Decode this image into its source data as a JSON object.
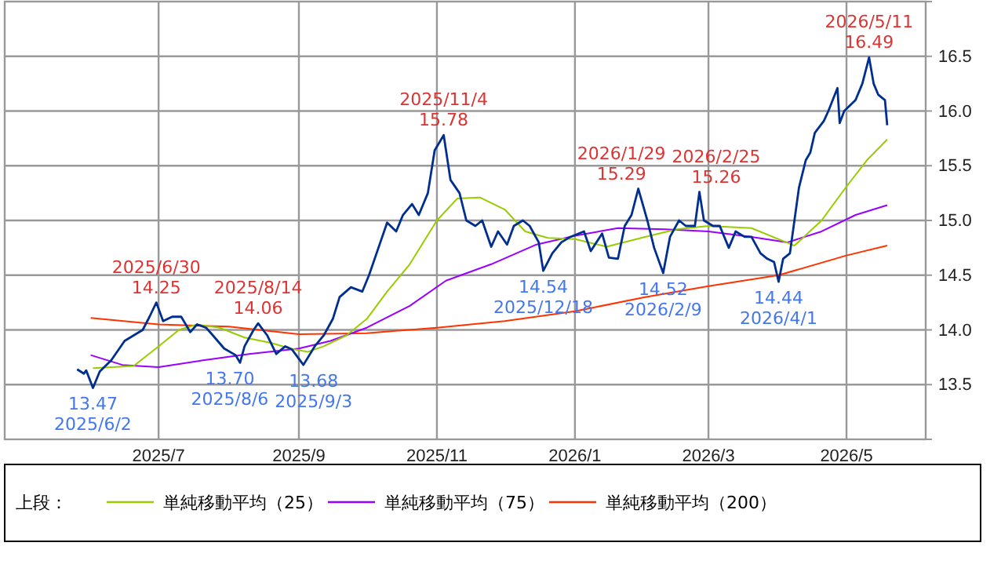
{
  "chart_data": {
    "type": "line",
    "xlim": [
      "2025-04-24",
      "2026-06-05"
    ],
    "ylim": [
      13,
      17
    ],
    "xticks": [
      {
        "value": "2025-07-01",
        "label": "2025/7"
      },
      {
        "value": "2025-09-01",
        "label": "2025/9"
      },
      {
        "value": "2025-11-01",
        "label": "2025/11"
      },
      {
        "value": "2026-01-01",
        "label": "2026/1"
      },
      {
        "value": "2026-03-01",
        "label": "2026/3"
      },
      {
        "value": "2026-05-01",
        "label": "2026/5"
      }
    ],
    "yticks": [
      {
        "value": 13.5,
        "label": "13.5"
      },
      {
        "value": 14,
        "label": "14.0"
      },
      {
        "value": 14.5,
        "label": "14.5"
      },
      {
        "value": 15,
        "label": "15.0"
      },
      {
        "value": 15.5,
        "label": "15.5"
      },
      {
        "value": 16,
        "label": "16.0"
      },
      {
        "value": 16.5,
        "label": "16.5"
      }
    ],
    "grid": true,
    "legend": "bottom",
    "legend_title": "上段：",
    "series": [
      {
        "color": "#002f8f",
        "x": [
          "2025-05-26",
          "2025-05-29",
          "2025-05-30",
          "2025-06-02",
          "2025-06-05",
          "2025-06-10",
          "2025-06-16",
          "2025-06-20",
          "2025-06-24",
          "2025-06-27",
          "2025-06-30",
          "2025-07-03",
          "2025-07-07",
          "2025-07-11",
          "2025-07-15",
          "2025-07-18",
          "2025-07-22",
          "2025-07-25",
          "2025-07-30",
          "2025-08-04",
          "2025-08-06",
          "2025-08-08",
          "2025-08-12",
          "2025-08-14",
          "2025-08-18",
          "2025-08-22",
          "2025-08-26",
          "2025-08-29",
          "2025-09-03",
          "2025-09-08",
          "2025-09-12",
          "2025-09-16",
          "2025-09-19",
          "2025-09-24",
          "2025-09-29",
          "2025-10-02",
          "2025-10-07",
          "2025-10-10",
          "2025-10-14",
          "2025-10-17",
          "2025-10-21",
          "2025-10-24",
          "2025-10-28",
          "2025-10-31",
          "2025-11-04",
          "2025-11-07",
          "2025-11-11",
          "2025-11-14",
          "2025-11-18",
          "2025-11-21",
          "2025-11-25",
          "2025-11-28",
          "2025-12-02",
          "2025-12-05",
          "2025-12-09",
          "2025-12-12",
          "2025-12-16",
          "2025-12-18",
          "2025-12-22",
          "2025-12-26",
          "2025-12-30",
          "2026-01-05",
          "2026-01-08",
          "2026-01-13",
          "2026-01-16",
          "2026-01-20",
          "2026-01-23",
          "2026-01-26",
          "2026-01-29",
          "2026-02-02",
          "2026-02-05",
          "2026-02-09",
          "2026-02-12",
          "2026-02-16",
          "2026-02-19",
          "2026-02-23",
          "2026-02-25",
          "2026-02-27",
          "2026-03-03",
          "2026-03-06",
          "2026-03-10",
          "2026-03-13",
          "2026-03-17",
          "2026-03-20",
          "2026-03-24",
          "2026-03-27",
          "2026-03-30",
          "2026-04-01",
          "2026-04-03",
          "2026-04-06",
          "2026-04-08",
          "2026-04-10",
          "2026-04-13",
          "2026-04-15",
          "2026-04-17",
          "2026-04-21",
          "2026-04-23",
          "2026-04-27",
          "2026-04-28",
          "2026-04-30",
          "2026-05-05",
          "2026-05-08",
          "2026-05-11",
          "2026-05-13",
          "2026-05-15",
          "2026-05-18",
          "2026-05-19"
        ],
        "values": [
          13.64,
          13.6,
          13.63,
          13.47,
          13.62,
          13.72,
          13.9,
          13.95,
          14.0,
          14.12,
          14.25,
          14.08,
          14.12,
          14.12,
          13.98,
          14.05,
          14.02,
          13.95,
          13.83,
          13.77,
          13.7,
          13.85,
          14.0,
          14.06,
          13.95,
          13.78,
          13.85,
          13.82,
          13.68,
          13.85,
          13.95,
          14.1,
          14.3,
          14.39,
          14.35,
          14.5,
          14.8,
          14.98,
          14.9,
          15.05,
          15.15,
          15.05,
          15.25,
          15.64,
          15.78,
          15.37,
          15.25,
          15.0,
          14.95,
          15.0,
          14.76,
          14.9,
          14.78,
          14.95,
          15.0,
          14.95,
          14.8,
          14.54,
          14.7,
          14.8,
          14.85,
          14.9,
          14.72,
          14.88,
          14.66,
          14.65,
          14.95,
          15.05,
          15.29,
          15.0,
          14.75,
          14.52,
          14.85,
          15.0,
          14.95,
          14.95,
          15.26,
          15.0,
          14.95,
          14.95,
          14.75,
          14.9,
          14.85,
          14.85,
          14.7,
          14.65,
          14.62,
          14.44,
          14.65,
          14.7,
          15.0,
          15.3,
          15.55,
          15.62,
          15.8,
          15.91,
          16.0,
          16.21,
          15.89,
          16.0,
          16.1,
          16.25,
          16.49,
          16.25,
          16.15,
          16.1,
          15.87
        ]
      },
      {
        "name": "単純移動平均（25）",
        "color": "#99cc00",
        "x": [
          "2025-06-02",
          "2025-06-20",
          "2025-07-01",
          "2025-07-10",
          "2025-07-18",
          "2025-07-28",
          "2025-08-08",
          "2025-08-20",
          "2025-08-28",
          "2025-09-05",
          "2025-09-12",
          "2025-09-22",
          "2025-10-01",
          "2025-10-10",
          "2025-10-20",
          "2025-11-01",
          "2025-11-10",
          "2025-11-20",
          "2025-12-01",
          "2025-12-10",
          "2025-12-20",
          "2026-01-01",
          "2026-01-15",
          "2026-02-01",
          "2026-02-15",
          "2026-03-01",
          "2026-03-20",
          "2026-04-08",
          "2026-04-20",
          "2026-05-01",
          "2026-05-10",
          "2026-05-19"
        ],
        "values": [
          13.65,
          13.67,
          13.85,
          14.0,
          14.05,
          14.02,
          13.93,
          13.88,
          13.83,
          13.8,
          13.85,
          13.95,
          14.1,
          14.35,
          14.6,
          15.0,
          15.2,
          15.21,
          15.1,
          14.9,
          14.84,
          14.83,
          14.76,
          14.85,
          14.92,
          14.95,
          14.93,
          14.77,
          15.0,
          15.31,
          15.55,
          15.74
        ]
      },
      {
        "name": "単純移動平均（75）",
        "color": "#9900ff",
        "x": [
          "2025-06-01",
          "2025-06-15",
          "2025-07-01",
          "2025-07-20",
          "2025-08-10",
          "2025-09-01",
          "2025-09-15",
          "2025-10-01",
          "2025-10-20",
          "2025-11-05",
          "2025-11-25",
          "2025-12-15",
          "2026-01-01",
          "2026-01-20",
          "2026-02-10",
          "2026-03-01",
          "2026-03-20",
          "2026-04-05",
          "2026-04-20",
          "2026-05-05",
          "2026-05-19"
        ],
        "values": [
          13.77,
          13.68,
          13.66,
          13.72,
          13.78,
          13.83,
          13.9,
          14.02,
          14.22,
          14.45,
          14.6,
          14.78,
          14.86,
          14.93,
          14.92,
          14.9,
          14.85,
          14.8,
          14.9,
          15.05,
          15.14
        ]
      },
      {
        "name": "単純移動平均（200）",
        "color": "#ff3300",
        "x": [
          "2025-06-01",
          "2025-07-01",
          "2025-08-01",
          "2025-09-01",
          "2025-10-01",
          "2025-11-01",
          "2025-12-01",
          "2026-01-01",
          "2026-02-01",
          "2026-03-01",
          "2026-04-01",
          "2026-05-01",
          "2026-05-19"
        ],
        "values": [
          14.11,
          14.05,
          14.03,
          13.96,
          13.97,
          14.02,
          14.08,
          14.17,
          14.3,
          14.4,
          14.5,
          14.68,
          14.77
        ]
      }
    ],
    "annotations": [
      {
        "text": "2025/6/30\n14.25",
        "x": "2025-06-30",
        "y": 14.25
      },
      {
        "text": "2025/8/14\n14.06",
        "x": "2025-08-14",
        "y": 14.06
      },
      {
        "text": "2025/11/4\n15.78",
        "x": "2025-11-04",
        "y": 15.78
      },
      {
        "text": "2026/1/29\n15.29",
        "x": "2026-01-29",
        "y": 15.29
      },
      {
        "text": "2026/2/25\n15.26",
        "x": "2026-02-25",
        "y": 15.26
      },
      {
        "text": "2026/5/11\n16.49",
        "x": "2026-05-11",
        "y": 16.49
      },
      {
        "text": "13.47\n2025/6/2",
        "x": "2025-06-02",
        "y": 13.47
      },
      {
        "text": "13.70\n2025/8/6",
        "x": "2025-08-06",
        "y": 13.7
      },
      {
        "text": "13.68\n2025/9/3",
        "x": "2025-09-03",
        "y": 13.68
      },
      {
        "text": "14.54\n2025/12/18",
        "x": "2025-12-18",
        "y": 14.54
      },
      {
        "text": "14.52\n2026/2/9",
        "x": "2026-02-09",
        "y": 14.52
      },
      {
        "text": "14.44\n2026/4/1",
        "x": "2026-04-01",
        "y": 14.44
      }
    ]
  }
}
